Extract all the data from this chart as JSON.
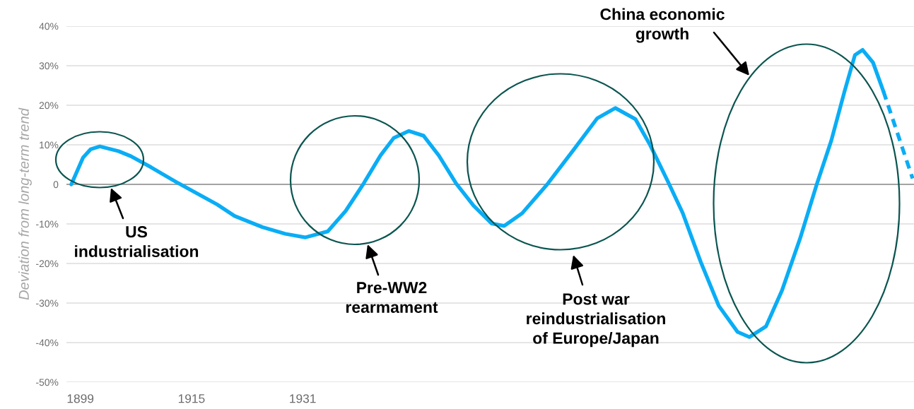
{
  "chart_data": {
    "type": "line",
    "ylabel": "Deviation from long-term trend",
    "xlim": [
      1897,
      2019
    ],
    "ylim": [
      -50,
      40
    ],
    "xticks": [
      1899,
      1915,
      1931
    ],
    "yticks": [
      {
        "value": -50,
        "label": "-50%"
      },
      {
        "value": -40,
        "label": "-40%"
      },
      {
        "value": -30,
        "label": "-30%"
      },
      {
        "value": -20,
        "label": "-20%"
      },
      {
        "value": -10,
        "label": "-10%"
      },
      0,
      {
        "value": 10,
        "label": "10%"
      },
      {
        "value": 20,
        "label": "20%"
      },
      {
        "value": 30,
        "label": "30%"
      },
      {
        "value": 40,
        "label": "40%"
      }
    ],
    "grid": "y",
    "ref_lines": [
      {
        "axis": "y",
        "value": 0,
        "color": "#8c8c8c"
      }
    ],
    "series": [
      {
        "color": "#0aadf5",
        "line_style": "solid",
        "x": [
          1897.7,
          1899.4,
          1900.5,
          1901.8,
          1904.5,
          1906.3,
          1909.2,
          1912.9,
          1918.7,
          1921.2,
          1925.2,
          1928.5,
          1931.4,
          1934.6,
          1937.2,
          1939.7,
          1942.2,
          1944.1,
          1946.3,
          1948.4,
          1950.6,
          1953.1,
          1955.6,
          1958.2,
          1960.0,
          1962.6,
          1966.2,
          1969.9,
          1973.4,
          1976.0,
          1978.9,
          1981.0,
          1983.5,
          1985.7,
          1988.3,
          1990.9,
          1993.6,
          1995.3,
          1997.7,
          2000.0,
          2002.6,
          2005.0,
          2007.1,
          2009.0,
          2010.5,
          2011.6,
          2013.1,
          2014.6
        ],
        "values": [
          0,
          6.8,
          8.9,
          9.6,
          8.4,
          7.1,
          4.3,
          0.5,
          -5.1,
          -8.0,
          -10.8,
          -12.5,
          -13.4,
          -11.9,
          -6.7,
          0,
          7.3,
          11.7,
          13.5,
          12.3,
          7.3,
          0.2,
          -5.4,
          -9.9,
          -10.5,
          -7.3,
          0,
          8.5,
          16.7,
          19.3,
          16.5,
          10,
          1,
          -7.2,
          -19.6,
          -30.7,
          -37.3,
          -38.6,
          -35.9,
          -26.8,
          -13.7,
          0,
          11.1,
          23.5,
          32.7,
          34,
          30.8,
          23.5
        ]
      },
      {
        "color": "#0aadf5",
        "line_style": "dashed",
        "x": [
          2014.6,
          2018.8
        ],
        "values": [
          23.5,
          1.5
        ]
      }
    ],
    "annotations": [
      "US\nindustrialisation",
      "Pre-WW2\nrearmament",
      "Post war\nreindustrialisation\nof Europe/Japan",
      "China economic\ngrowth"
    ]
  }
}
